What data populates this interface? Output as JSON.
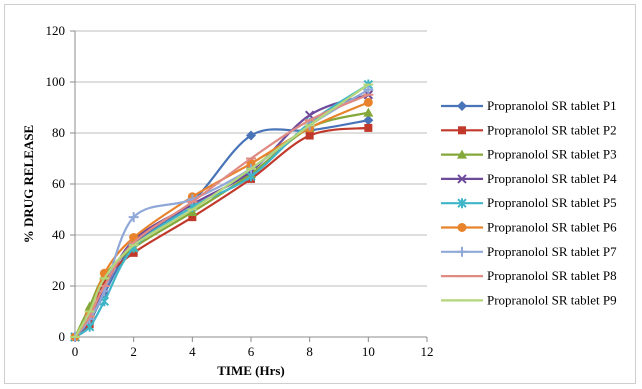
{
  "chart_data": {
    "type": "line",
    "title": "",
    "xlabel": "TIME (Hrs)",
    "ylabel": "% DRUG RELEASE",
    "xlim": [
      0,
      12
    ],
    "ylim": [
      0,
      120
    ],
    "xticks": [
      0,
      2,
      4,
      6,
      8,
      10,
      12
    ],
    "yticks": [
      0,
      20,
      40,
      60,
      80,
      100,
      120
    ],
    "grid": "horizontal",
    "legend_position": "right",
    "x": [
      0,
      0.5,
      1,
      2,
      4,
      6,
      8,
      10
    ],
    "series": [
      {
        "name": "Propranolol SR tablet P1",
        "color": "#4a74b8",
        "marker": "diamond",
        "values": [
          0,
          6,
          17,
          36,
          53,
          79,
          81,
          85
        ]
      },
      {
        "name": "Propranolol SR tablet P2",
        "color": "#c0392b",
        "marker": "square",
        "values": [
          0,
          5,
          22,
          33,
          47,
          62,
          79,
          82
        ]
      },
      {
        "name": "Propranolol SR tablet P3",
        "color": "#84a83a",
        "marker": "triangle",
        "values": [
          0,
          12,
          24,
          35,
          49,
          64,
          82,
          88
        ]
      },
      {
        "name": "Propranolol SR tablet P4",
        "color": "#6e4a9b",
        "marker": "x",
        "values": [
          0,
          8,
          19,
          38,
          52,
          65,
          87,
          95
        ]
      },
      {
        "name": "Propranolol SR tablet P5",
        "color": "#3fb5c8",
        "marker": "asterisk",
        "values": [
          0,
          4,
          14,
          35,
          51,
          63,
          84,
          99
        ]
      },
      {
        "name": "Propranolol SR tablet P6",
        "color": "#e8832c",
        "marker": "circle",
        "values": [
          0,
          9,
          25,
          39,
          55,
          68,
          82,
          92
        ]
      },
      {
        "name": "Propranolol SR tablet P7",
        "color": "#8fa8d8",
        "marker": "plus",
        "values": [
          0,
          7,
          18,
          47,
          54,
          66,
          83,
          97
        ]
      },
      {
        "name": "Propranolol SR tablet P8",
        "color": "#e08a84",
        "marker": "dash",
        "values": [
          0,
          8,
          20,
          37,
          53,
          70,
          85,
          95
        ]
      },
      {
        "name": "Propranolol SR tablet P9",
        "color": "#b3d67c",
        "marker": "dash",
        "values": [
          0,
          10,
          23,
          36,
          50,
          66,
          83,
          99
        ]
      }
    ]
  }
}
